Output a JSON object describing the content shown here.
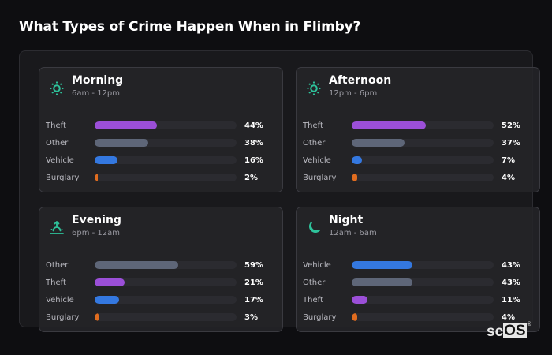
{
  "page": {
    "title": "What Types of Crime Happen When in Flimby?"
  },
  "colors": {
    "theft": "#9b4fd8",
    "other": "#5e6678",
    "vehicle": "#3478e0",
    "burglary": "#e06c1f",
    "icon_accent": "#2ec39b",
    "track": "#2b2b30"
  },
  "cards": [
    {
      "title": "Morning",
      "subtitle": "6am - 12pm",
      "icon": "sun-icon",
      "rows": [
        {
          "label": "Theft",
          "value": 44,
          "display": "44%",
          "color": "#9b4fd8"
        },
        {
          "label": "Other",
          "value": 38,
          "display": "38%",
          "color": "#5e6678"
        },
        {
          "label": "Vehicle",
          "value": 16,
          "display": "16%",
          "color": "#3478e0"
        },
        {
          "label": "Burglary",
          "value": 2,
          "display": "2%",
          "color": "#e06c1f"
        }
      ]
    },
    {
      "title": "Afternoon",
      "subtitle": "12pm - 6pm",
      "icon": "sun-icon",
      "rows": [
        {
          "label": "Theft",
          "value": 52,
          "display": "52%",
          "color": "#9b4fd8"
        },
        {
          "label": "Other",
          "value": 37,
          "display": "37%",
          "color": "#5e6678"
        },
        {
          "label": "Vehicle",
          "value": 7,
          "display": "7%",
          "color": "#3478e0"
        },
        {
          "label": "Burglary",
          "value": 4,
          "display": "4%",
          "color": "#e06c1f"
        }
      ]
    },
    {
      "title": "Evening",
      "subtitle": "6pm - 12am",
      "icon": "sunset-icon",
      "rows": [
        {
          "label": "Other",
          "value": 59,
          "display": "59%",
          "color": "#5e6678"
        },
        {
          "label": "Theft",
          "value": 21,
          "display": "21%",
          "color": "#9b4fd8"
        },
        {
          "label": "Vehicle",
          "value": 17,
          "display": "17%",
          "color": "#3478e0"
        },
        {
          "label": "Burglary",
          "value": 3,
          "display": "3%",
          "color": "#e06c1f"
        }
      ]
    },
    {
      "title": "Night",
      "subtitle": "12am - 6am",
      "icon": "moon-icon",
      "rows": [
        {
          "label": "Vehicle",
          "value": 43,
          "display": "43%",
          "color": "#3478e0"
        },
        {
          "label": "Other",
          "value": 43,
          "display": "43%",
          "color": "#5e6678"
        },
        {
          "label": "Theft",
          "value": 11,
          "display": "11%",
          "color": "#9b4fd8"
        },
        {
          "label": "Burglary",
          "value": 4,
          "display": "4%",
          "color": "#e06c1f"
        }
      ]
    }
  ],
  "logo": {
    "prefix": "sc",
    "boxed": "OS",
    "mark": "®"
  },
  "chart_data": {
    "type": "bar",
    "orientation": "horizontal",
    "title": "What Types of Crime Happen When in Flimby?",
    "unit": "%",
    "xlim": [
      0,
      100
    ],
    "panels": [
      {
        "title": "Morning",
        "subtitle": "6am - 12pm",
        "categories": [
          "Theft",
          "Other",
          "Vehicle",
          "Burglary"
        ],
        "values": [
          44,
          38,
          16,
          2
        ]
      },
      {
        "title": "Afternoon",
        "subtitle": "12pm - 6pm",
        "categories": [
          "Theft",
          "Other",
          "Vehicle",
          "Burglary"
        ],
        "values": [
          52,
          37,
          7,
          4
        ]
      },
      {
        "title": "Evening",
        "subtitle": "6pm - 12am",
        "categories": [
          "Other",
          "Theft",
          "Vehicle",
          "Burglary"
        ],
        "values": [
          59,
          21,
          17,
          3
        ]
      },
      {
        "title": "Night",
        "subtitle": "12am - 6am",
        "categories": [
          "Vehicle",
          "Other",
          "Theft",
          "Burglary"
        ],
        "values": [
          43,
          43,
          11,
          4
        ]
      }
    ],
    "legend": null,
    "grid": false
  }
}
